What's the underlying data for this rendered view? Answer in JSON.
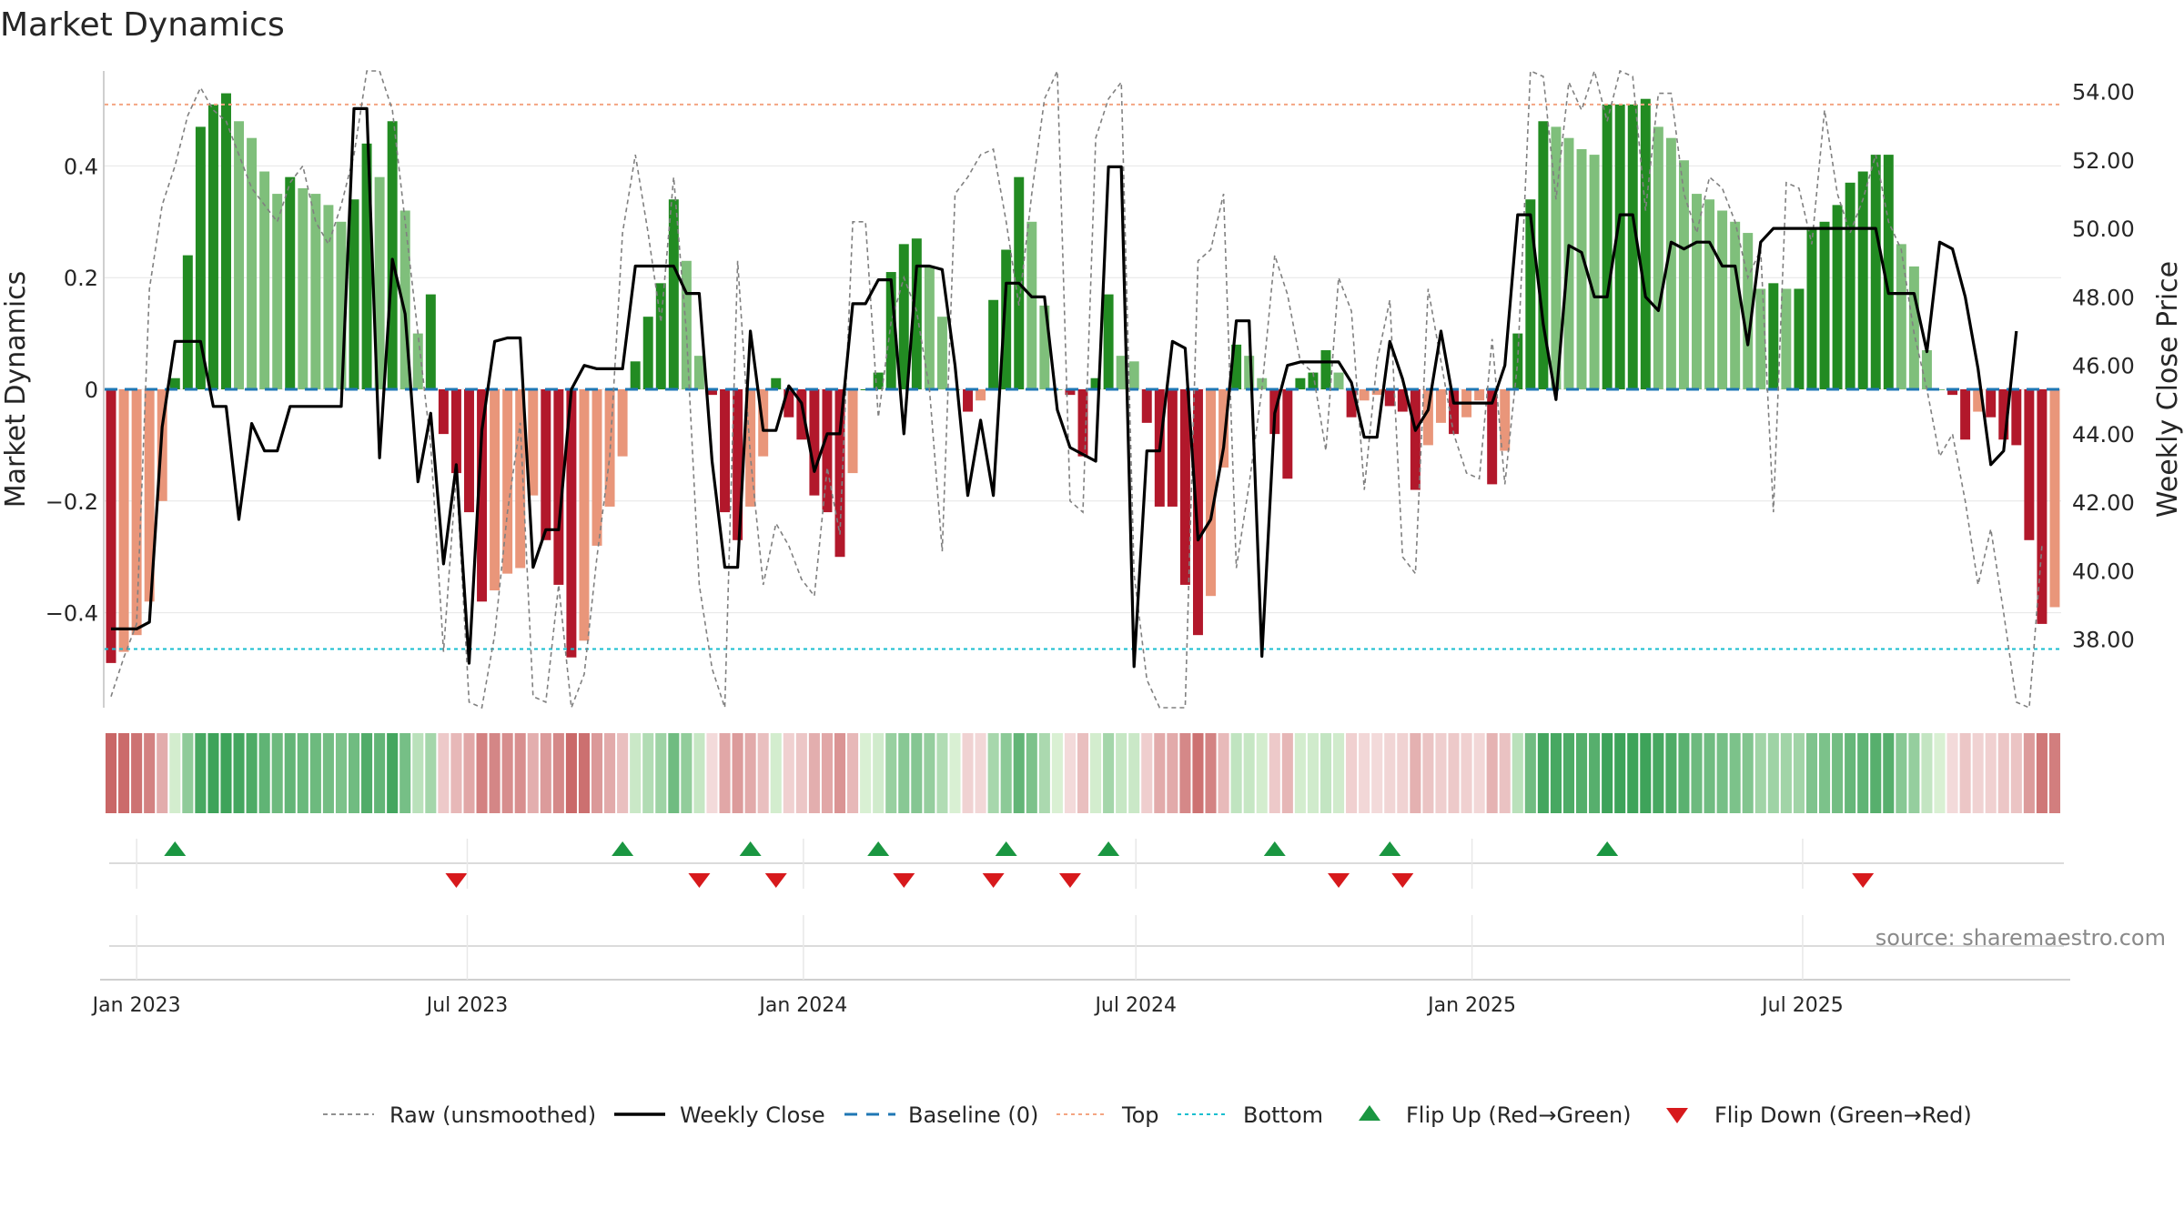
{
  "chart_data": {
    "type": "bar",
    "title": "Market Dynamics",
    "ylabel_left": "Market Dynamics",
    "ylabel_right": "Weekly Close Price",
    "ylim_left": [
      -0.57,
      0.57
    ],
    "ylim_right": [
      36.0,
      54.6
    ],
    "left_ticks": [
      -0.4,
      -0.2,
      0.0,
      0.2,
      0.4
    ],
    "left_tick_labels": [
      "−0.4",
      "−0.2",
      "0",
      "0.2",
      "0.4"
    ],
    "right_ticks": [
      38,
      40,
      42,
      44,
      46,
      48,
      50,
      52,
      54
    ],
    "right_tick_labels": [
      "38.00",
      "40.00",
      "42.00",
      "44.00",
      "46.00",
      "48.00",
      "50.00",
      "52.00",
      "54.00"
    ],
    "x_ticks": [
      "2023-01-01",
      "2023-07-01",
      "2024-01-01",
      "2024-07-01",
      "2025-01-01",
      "2025-07-01"
    ],
    "x_tick_labels": [
      "Jan 2023",
      "Jul 2023",
      "Jan 2024",
      "Jul 2024",
      "Jan 2025",
      "Jul 2025"
    ],
    "week_start": "2022-12-18",
    "top_level": 0.51,
    "bottom_level": -0.465,
    "baseline": 0,
    "bars": [
      -0.49,
      -0.47,
      -0.44,
      -0.38,
      -0.2,
      0.02,
      0.24,
      0.47,
      0.51,
      0.53,
      0.48,
      0.45,
      0.39,
      0.35,
      0.38,
      0.36,
      0.35,
      0.33,
      0.3,
      0.34,
      0.44,
      0.38,
      0.48,
      0.32,
      0.1,
      0.17,
      -0.08,
      -0.15,
      -0.22,
      -0.38,
      -0.36,
      -0.33,
      -0.32,
      -0.19,
      -0.27,
      -0.35,
      -0.48,
      -0.45,
      -0.28,
      -0.21,
      -0.12,
      0.05,
      0.13,
      0.19,
      0.34,
      0.23,
      0.06,
      -0.01,
      -0.22,
      -0.27,
      -0.21,
      -0.12,
      0.02,
      -0.05,
      -0.09,
      -0.19,
      -0.22,
      -0.3,
      -0.15,
      0.0,
      0.03,
      0.21,
      0.26,
      0.27,
      0.22,
      0.13,
      0.0,
      -0.04,
      -0.02,
      0.16,
      0.25,
      0.38,
      0.3,
      0.15,
      0.0,
      -0.01,
      -0.12,
      0.02,
      0.17,
      0.06,
      0.05,
      -0.06,
      -0.21,
      -0.21,
      -0.35,
      -0.44,
      -0.37,
      -0.14,
      0.08,
      0.06,
      0.02,
      -0.08,
      -0.16,
      0.02,
      0.03,
      0.07,
      0.03,
      -0.05,
      -0.02,
      -0.01,
      -0.03,
      -0.04,
      -0.18,
      -0.1,
      -0.06,
      -0.08,
      -0.05,
      -0.02,
      -0.17,
      -0.11,
      0.1,
      0.34,
      0.48,
      0.47,
      0.45,
      0.43,
      0.42,
      0.51,
      0.51,
      0.51,
      0.52,
      0.47,
      0.45,
      0.41,
      0.35,
      0.34,
      0.32,
      0.3,
      0.28,
      0.18,
      0.19,
      0.18,
      0.18,
      0.29,
      0.3,
      0.33,
      0.37,
      0.39,
      0.42,
      0.42,
      0.26,
      0.22,
      0.07,
      0.0,
      -0.01,
      -0.09,
      -0.04,
      -0.05,
      -0.09,
      -0.1,
      -0.27,
      -0.42,
      -0.39
    ],
    "raw": [
      -0.55,
      -0.48,
      -0.42,
      0.18,
      0.33,
      0.4,
      0.49,
      0.54,
      0.5,
      0.48,
      0.42,
      0.36,
      0.33,
      0.3,
      0.37,
      0.4,
      0.3,
      0.26,
      0.33,
      0.42,
      0.6,
      0.62,
      0.5,
      0.3,
      0.1,
      -0.1,
      -0.47,
      -0.15,
      -0.56,
      -0.6,
      -0.44,
      -0.22,
      -0.06,
      -0.55,
      -0.56,
      -0.35,
      -0.6,
      -0.51,
      -0.3,
      -0.12,
      0.28,
      0.42,
      0.28,
      0.12,
      0.38,
      0.1,
      -0.35,
      -0.5,
      -0.6,
      0.23,
      -0.12,
      -0.35,
      -0.24,
      -0.28,
      -0.34,
      -0.37,
      -0.14,
      -0.26,
      0.3,
      0.3,
      -0.05,
      0.12,
      0.2,
      0.14,
      0.0,
      -0.29,
      0.35,
      0.38,
      0.42,
      0.43,
      0.3,
      0.15,
      0.35,
      0.52,
      0.58,
      -0.2,
      -0.22,
      0.45,
      0.52,
      0.55,
      -0.33,
      -0.52,
      -0.6,
      -0.58,
      -0.6,
      0.23,
      0.25,
      0.35,
      -0.32,
      -0.17,
      0.0,
      0.24,
      0.17,
      0.05,
      0.03,
      -0.11,
      0.2,
      0.14,
      -0.18,
      0.05,
      0.16,
      -0.3,
      -0.33,
      0.18,
      0.05,
      -0.08,
      -0.15,
      -0.16,
      0.09,
      -0.17,
      0.05,
      0.58,
      0.56,
      0.34,
      0.55,
      0.5,
      0.58,
      0.48,
      0.58,
      0.56,
      0.32,
      0.53,
      0.53,
      0.35,
      0.28,
      0.38,
      0.36,
      0.3,
      0.2,
      0.25,
      -0.22,
      0.37,
      0.36,
      0.26,
      0.5,
      0.35,
      0.28,
      0.34,
      0.42,
      0.3,
      0.25,
      0.1,
      0.0,
      -0.12,
      -0.08,
      -0.2,
      -0.35,
      -0.25,
      -0.4,
      -0.56,
      -0.6,
      -0.28
    ],
    "price": [
      38.3,
      38.3,
      38.3,
      38.5,
      44.2,
      46.7,
      46.7,
      46.7,
      44.8,
      44.8,
      41.5,
      44.3,
      43.5,
      43.5,
      44.8,
      44.8,
      44.8,
      44.8,
      44.8,
      53.5,
      53.5,
      43.3,
      49.1,
      47.5,
      42.6,
      44.6,
      40.2,
      43.1,
      37.3,
      44.1,
      46.7,
      46.8,
      46.8,
      40.1,
      41.2,
      41.2,
      45.3,
      46.0,
      45.9,
      45.9,
      45.9,
      48.9,
      48.9,
      48.9,
      48.9,
      48.1,
      48.1,
      43.2,
      40.1,
      40.1,
      47.0,
      44.1,
      44.1,
      45.4,
      44.9,
      42.9,
      44.0,
      44.0,
      47.8,
      47.8,
      48.5,
      48.5,
      44.0,
      48.9,
      48.9,
      48.8,
      46.0,
      42.2,
      44.4,
      42.2,
      48.4,
      48.4,
      48.0,
      48.0,
      44.7,
      43.6,
      43.4,
      43.2,
      51.8,
      51.8,
      37.2,
      43.5,
      43.5,
      46.7,
      46.5,
      40.9,
      41.5,
      43.6,
      47.3,
      47.3,
      37.5,
      44.6,
      46.0,
      46.1,
      46.1,
      46.1,
      46.1,
      45.5,
      43.9,
      43.9,
      46.7,
      45.6,
      44.1,
      44.7,
      47.0,
      44.9,
      44.9,
      44.9,
      44.9,
      46.0,
      50.4,
      50.4,
      47.2,
      45.0,
      49.5,
      49.3,
      48.0,
      48.0,
      50.4,
      50.4,
      48.0,
      47.6,
      49.6,
      49.4,
      49.6,
      49.6,
      48.9,
      48.9,
      46.6,
      49.6,
      50.0,
      50.0,
      50.0,
      50.0,
      50.0,
      50.0,
      50.0,
      50.0,
      50.0,
      48.1,
      48.1,
      48.1,
      46.4,
      49.6,
      49.4,
      48.0,
      45.9,
      43.1,
      43.5,
      47.0
    ],
    "flip_up_weeks": [
      5,
      40,
      50,
      60,
      70,
      78,
      91,
      100,
      117
    ],
    "flip_down_weeks": [
      27,
      46,
      52,
      62,
      69,
      75,
      96,
      101,
      137
    ],
    "series": [
      {
        "name": "Raw (unsmoothed)",
        "color": "#808080",
        "style": "dashed"
      },
      {
        "name": "Weekly Close",
        "color": "#000000",
        "style": "solid"
      },
      {
        "name": "Baseline (0)",
        "color": "#1f77b4",
        "style": "dashed"
      },
      {
        "name": "Top",
        "color": "#f4a582",
        "style": "dotted"
      },
      {
        "name": "Bottom",
        "color": "#17becf",
        "style": "dotted"
      },
      {
        "name": "Flip Up (Red→Green)",
        "color": "#1a9641",
        "style": "marker-up"
      },
      {
        "name": "Flip Down (Green→Red)",
        "color": "#d7191c",
        "style": "marker-down"
      }
    ],
    "bar_colors": {
      "strong_green": "#228b22",
      "light_green": "#7fbf7b",
      "strong_red": "#b2182b",
      "light_red": "#e9967a"
    },
    "grid": "horizontal",
    "legend_placement": "bottom-center",
    "source_text": "source: sharemaestro.com"
  }
}
